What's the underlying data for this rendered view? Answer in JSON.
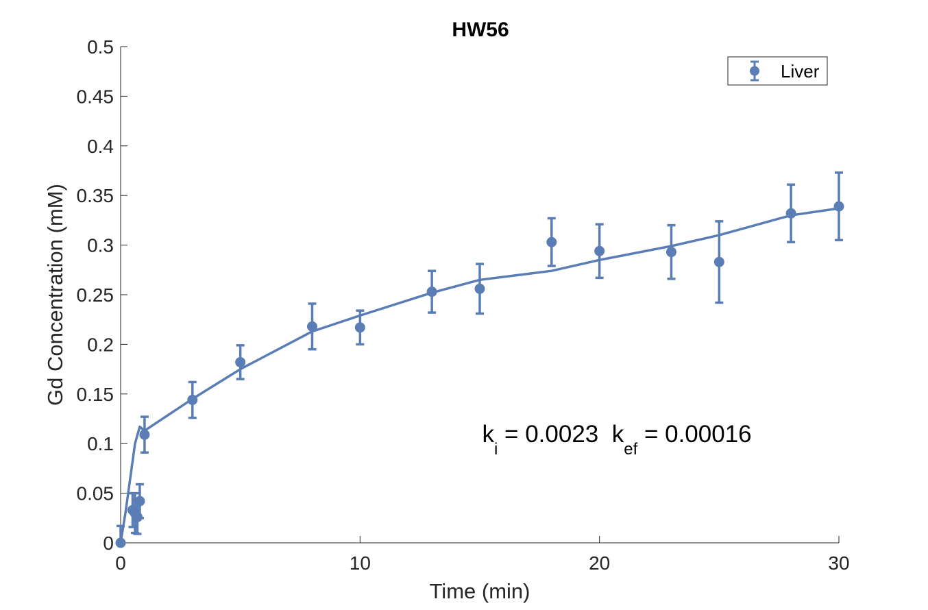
{
  "chart_data": {
    "type": "scatter",
    "title": "HW56",
    "xlabel": "Time (min)",
    "ylabel": "Gd Concentration (mM)",
    "xlim": [
      0,
      30
    ],
    "ylim": [
      0,
      0.5
    ],
    "xticks": [
      0,
      10,
      20,
      30
    ],
    "xtick_labels": [
      "0",
      "10",
      "20",
      "30"
    ],
    "yticks": [
      0,
      0.05,
      0.1,
      0.15,
      0.2,
      0.25,
      0.3,
      0.35,
      0.4,
      0.45,
      0.5
    ],
    "ytick_labels": [
      "0",
      "0.05",
      "0.1",
      "0.15",
      "0.2",
      "0.25",
      "0.3",
      "0.35",
      "0.4",
      "0.45",
      "0.5"
    ],
    "grid": false,
    "legend_position": "top-right",
    "series": [
      {
        "name": "Liver",
        "kind": "errorbar",
        "color": "#5a7db5",
        "x": [
          0,
          0.5,
          0.6,
          0.7,
          0.8,
          1,
          3,
          5,
          8,
          10,
          13,
          15,
          18,
          20,
          23,
          25,
          28,
          30
        ],
        "y": [
          0,
          0.033,
          0.03,
          0.026,
          0.042,
          0.109,
          0.144,
          0.182,
          0.218,
          0.217,
          0.253,
          0.256,
          0.303,
          0.294,
          0.293,
          0.283,
          0.332,
          0.339
        ],
        "err": [
          0.017,
          0.017,
          0.02,
          0.017,
          0.017,
          0.018,
          0.018,
          0.017,
          0.023,
          0.017,
          0.021,
          0.025,
          0.024,
          0.027,
          0.027,
          0.041,
          0.029,
          0.034
        ]
      }
    ],
    "fit": {
      "kind": "line",
      "color": "#5a7db5",
      "x": [
        0,
        0.2,
        0.4,
        0.6,
        0.8,
        1,
        3,
        5,
        8,
        10,
        13,
        15,
        18,
        20,
        23,
        25,
        28,
        30
      ],
      "y": [
        0,
        0.03,
        0.065,
        0.1,
        0.117,
        0.113,
        0.145,
        0.175,
        0.213,
        0.229,
        0.252,
        0.265,
        0.274,
        0.285,
        0.299,
        0.31,
        0.33,
        0.337
      ]
    },
    "annotation": {
      "ki_main": "k",
      "ki_sub": "i",
      "ki_value": " = 0.0023  ",
      "kef_main": "k",
      "kef_sub": "ef",
      "kef_value": " = 0.00016",
      "anchor_x": 15.1,
      "anchor_y": 0.1
    }
  }
}
